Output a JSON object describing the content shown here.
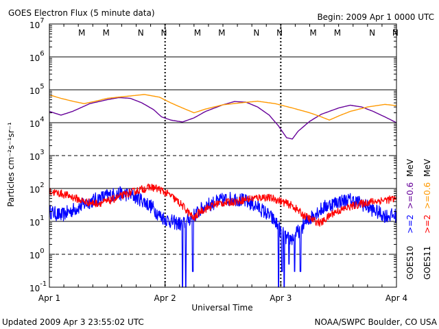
{
  "chart_data": {
    "type": "line",
    "title": "GOES Electron Flux (5 minute data)",
    "begin_label": "Begin: 2009 Apr 1 0000 UTC",
    "xlabel": "Universal Time",
    "ylabel": "Particles cm⁻²s⁻¹sr⁻¹",
    "x_ticks": [
      "Apr 1",
      "Apr 2",
      "Apr 3",
      "Apr 4"
    ],
    "x_range_days": [
      0,
      3
    ],
    "y_scale": "log",
    "y_range": [
      0.1,
      10000000
    ],
    "y_ticks": [
      {
        "base": "10",
        "exp": "7"
      },
      {
        "base": "10",
        "exp": "6"
      },
      {
        "base": "10",
        "exp": "5"
      },
      {
        "base": "10",
        "exp": "4"
      },
      {
        "base": "10",
        "exp": "3"
      },
      {
        "base": "10",
        "exp": "2"
      },
      {
        "base": "10",
        "exp": "1"
      },
      {
        "base": "10",
        "exp": "0"
      },
      {
        "base": "10",
        "exp": "-1"
      }
    ],
    "threshold_lines_dashed": [
      1000,
      1
    ],
    "midnight_markers": [
      {
        "label": "M",
        "color": "#0000ff",
        "day": 0.28
      },
      {
        "label": "M",
        "color": "#ff0000",
        "day": 0.49
      },
      {
        "label": "N",
        "color": "#0000ff",
        "day": 0.79
      },
      {
        "label": "N",
        "color": "#ff0000",
        "day": 0.99
      },
      {
        "label": "M",
        "color": "#0000ff",
        "day": 1.28
      },
      {
        "label": "M",
        "color": "#ff0000",
        "day": 1.49
      },
      {
        "label": "N",
        "color": "#0000ff",
        "day": 1.79
      },
      {
        "label": "N",
        "color": "#ff0000",
        "day": 1.99
      },
      {
        "label": "M",
        "color": "#0000ff",
        "day": 2.28
      },
      {
        "label": "M",
        "color": "#ff0000",
        "day": 2.49
      },
      {
        "label": "N",
        "color": "#0000ff",
        "day": 2.79
      },
      {
        "label": "N",
        "color": "#ff0000",
        "day": 2.99
      }
    ],
    "series": [
      {
        "name": "GOES10 >=0.6 MeV",
        "color": "#660099",
        "noise": 0.0,
        "points": [
          [
            0,
            22000
          ],
          [
            0.1,
            17000
          ],
          [
            0.2,
            22000
          ],
          [
            0.35,
            38000
          ],
          [
            0.5,
            50000
          ],
          [
            0.6,
            58000
          ],
          [
            0.7,
            55000
          ],
          [
            0.8,
            40000
          ],
          [
            0.9,
            25000
          ],
          [
            0.97,
            15000
          ],
          [
            1.05,
            12000
          ],
          [
            1.15,
            10500
          ],
          [
            1.25,
            14000
          ],
          [
            1.35,
            22000
          ],
          [
            1.5,
            35000
          ],
          [
            1.6,
            44000
          ],
          [
            1.7,
            42000
          ],
          [
            1.8,
            30000
          ],
          [
            1.9,
            17000
          ],
          [
            1.98,
            8000
          ],
          [
            2.05,
            3500
          ],
          [
            2.1,
            3200
          ],
          [
            2.15,
            5500
          ],
          [
            2.25,
            11000
          ],
          [
            2.35,
            18000
          ],
          [
            2.5,
            28000
          ],
          [
            2.6,
            34000
          ],
          [
            2.7,
            30000
          ],
          [
            2.8,
            22000
          ],
          [
            2.9,
            15000
          ],
          [
            3,
            10000
          ]
        ]
      },
      {
        "name": "GOES11 >=0.6 MeV",
        "color": "#ff9900",
        "noise": 0.0,
        "points": [
          [
            0,
            70000
          ],
          [
            0.1,
            55000
          ],
          [
            0.2,
            45000
          ],
          [
            0.3,
            38000
          ],
          [
            0.4,
            45000
          ],
          [
            0.5,
            55000
          ],
          [
            0.6,
            60000
          ],
          [
            0.7,
            65000
          ],
          [
            0.82,
            72000
          ],
          [
            0.95,
            60000
          ],
          [
            1.05,
            40000
          ],
          [
            1.15,
            28000
          ],
          [
            1.25,
            20000
          ],
          [
            1.35,
            26000
          ],
          [
            1.5,
            35000
          ],
          [
            1.65,
            40000
          ],
          [
            1.8,
            45000
          ],
          [
            1.95,
            38000
          ],
          [
            2.1,
            28000
          ],
          [
            2.25,
            20000
          ],
          [
            2.35,
            15000
          ],
          [
            2.42,
            12000
          ],
          [
            2.5,
            16000
          ],
          [
            2.6,
            22000
          ],
          [
            2.75,
            30000
          ],
          [
            2.9,
            36000
          ],
          [
            3,
            33000
          ]
        ]
      },
      {
        "name": "GOES10 >=2 MeV",
        "color": "#0000ff",
        "noise": 0.22,
        "points": [
          [
            0,
            20
          ],
          [
            0.1,
            15
          ],
          [
            0.2,
            22
          ],
          [
            0.35,
            40
          ],
          [
            0.5,
            60
          ],
          [
            0.6,
            70
          ],
          [
            0.7,
            65
          ],
          [
            0.8,
            45
          ],
          [
            0.9,
            25
          ],
          [
            0.95,
            15
          ],
          [
            1.0,
            12
          ],
          [
            1.05,
            10
          ],
          [
            1.15,
            8
          ],
          [
            1.25,
            15
          ],
          [
            1.35,
            30
          ],
          [
            1.5,
            45
          ],
          [
            1.6,
            50
          ],
          [
            1.7,
            40
          ],
          [
            1.8,
            28
          ],
          [
            1.9,
            15
          ],
          [
            1.95,
            10
          ],
          [
            2.0,
            5
          ],
          [
            2.05,
            3
          ],
          [
            2.1,
            3
          ],
          [
            2.2,
            8
          ],
          [
            2.3,
            18
          ],
          [
            2.4,
            30
          ],
          [
            2.5,
            40
          ],
          [
            2.6,
            45
          ],
          [
            2.7,
            35
          ],
          [
            2.8,
            22
          ],
          [
            2.9,
            15
          ],
          [
            3,
            15
          ]
        ],
        "dropouts": [
          [
            1.15,
            0.1
          ],
          [
            1.18,
            0.1
          ],
          [
            1.24,
            0.3
          ],
          [
            1.98,
            0.1
          ],
          [
            2.01,
            0.3
          ],
          [
            2.03,
            0.1
          ],
          [
            2.07,
            0.5
          ],
          [
            2.12,
            0.3
          ],
          [
            2.17,
            0.3
          ]
        ]
      },
      {
        "name": "GOES11 >=2 MeV",
        "color": "#ff0000",
        "noise": 0.12,
        "points": [
          [
            0,
            80
          ],
          [
            0.1,
            70
          ],
          [
            0.2,
            55
          ],
          [
            0.3,
            40
          ],
          [
            0.4,
            35
          ],
          [
            0.5,
            40
          ],
          [
            0.6,
            55
          ],
          [
            0.7,
            75
          ],
          [
            0.8,
            95
          ],
          [
            0.88,
            110
          ],
          [
            0.95,
            95
          ],
          [
            1.05,
            60
          ],
          [
            1.15,
            30
          ],
          [
            1.25,
            12
          ],
          [
            1.3,
            20
          ],
          [
            1.45,
            35
          ],
          [
            1.6,
            40
          ],
          [
            1.75,
            50
          ],
          [
            1.85,
            55
          ],
          [
            1.95,
            48
          ],
          [
            2.1,
            30
          ],
          [
            2.2,
            15
          ],
          [
            2.3,
            10
          ],
          [
            2.35,
            9
          ],
          [
            2.45,
            18
          ],
          [
            2.6,
            28
          ],
          [
            2.75,
            38
          ],
          [
            2.9,
            45
          ],
          [
            3,
            48
          ]
        ]
      }
    ],
    "right_legend": [
      {
        "text": "GOES10",
        "color": "#000000"
      },
      {
        "text": ">=2",
        "color": "#0000ff"
      },
      {
        "text": ">=0.6",
        "color": "#660099"
      },
      {
        "text": "MeV",
        "color": "#000000"
      },
      {
        "text": "GOES11",
        "color": "#000000"
      },
      {
        "text": ">=2",
        "color": "#ff0000"
      },
      {
        "text": ">=0.6",
        "color": "#ff9900"
      },
      {
        "text": "MeV",
        "color": "#000000"
      }
    ]
  },
  "footer": {
    "updated": "Updated 2009 Apr  3 23:55:02 UTC",
    "source": "NOAA/SWPC Boulder, CO USA"
  }
}
